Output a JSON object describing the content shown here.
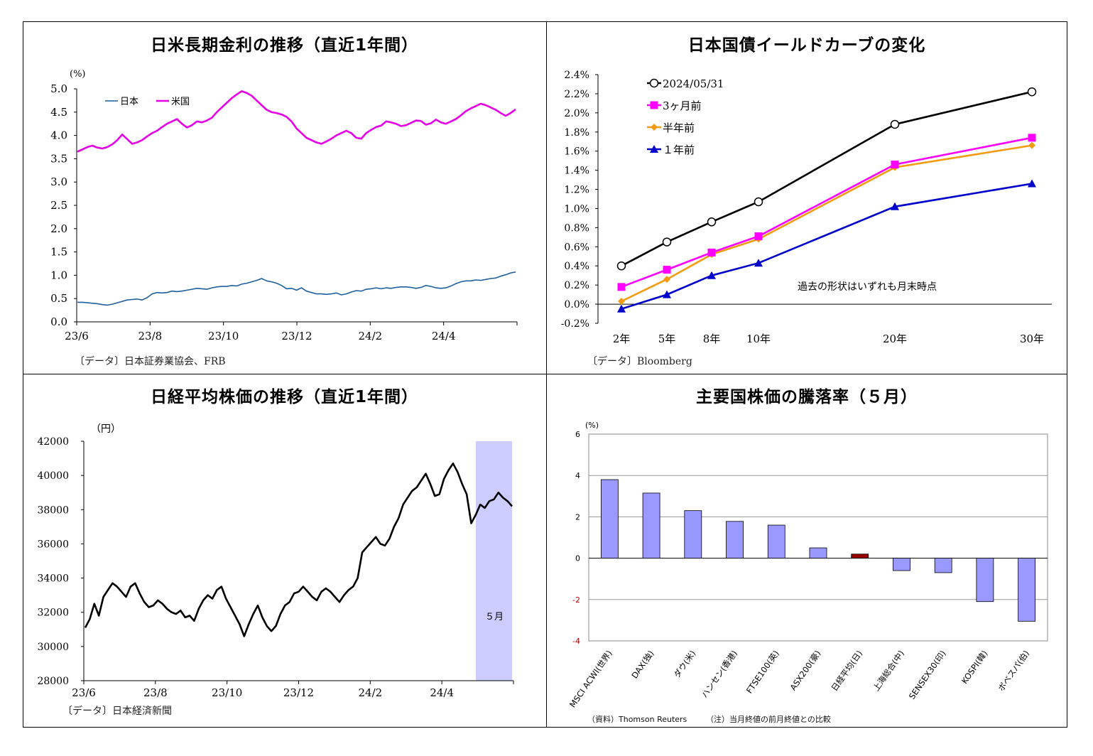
{
  "chart_data": [
    {
      "type": "line",
      "title": "日米長期金利の推移（直近1年間）",
      "ylabel": "(%)",
      "ylim": [
        0,
        5
      ],
      "yticks": [
        "5.0",
        "4.5",
        "4.0",
        "3.5",
        "3.0",
        "2.5",
        "2.0",
        "1.5",
        "1.0",
        "0.5",
        "0.0"
      ],
      "x_tick_labels": [
        "23/6",
        "23/8",
        "23/10",
        "23/12",
        "24/2",
        "24/4"
      ],
      "legend": "top-left",
      "series": [
        {
          "name": "日本",
          "color": "#1f5f9e",
          "values": [
            0.42,
            0.42,
            0.41,
            0.4,
            0.39,
            0.37,
            0.36,
            0.38,
            0.41,
            0.44,
            0.47,
            0.48,
            0.49,
            0.47,
            0.52,
            0.6,
            0.63,
            0.62,
            0.63,
            0.66,
            0.65,
            0.66,
            0.68,
            0.7,
            0.72,
            0.71,
            0.7,
            0.73,
            0.75,
            0.76,
            0.76,
            0.78,
            0.77,
            0.81,
            0.83,
            0.86,
            0.89,
            0.93,
            0.88,
            0.86,
            0.83,
            0.78,
            0.71,
            0.72,
            0.68,
            0.73,
            0.66,
            0.63,
            0.6,
            0.6,
            0.59,
            0.6,
            0.62,
            0.58,
            0.6,
            0.64,
            0.67,
            0.66,
            0.7,
            0.71,
            0.73,
            0.71,
            0.73,
            0.72,
            0.74,
            0.75,
            0.75,
            0.74,
            0.72,
            0.74,
            0.78,
            0.76,
            0.73,
            0.72,
            0.73,
            0.77,
            0.82,
            0.86,
            0.88,
            0.88,
            0.9,
            0.89,
            0.91,
            0.93,
            0.94,
            0.98,
            1.01,
            1.05,
            1.07
          ]
        },
        {
          "name": "米国",
          "color": "#e600e6",
          "values": [
            3.65,
            3.7,
            3.75,
            3.78,
            3.74,
            3.72,
            3.75,
            3.81,
            3.9,
            4.02,
            3.92,
            3.82,
            3.85,
            3.9,
            3.98,
            4.05,
            4.1,
            4.18,
            4.25,
            4.3,
            4.35,
            4.25,
            4.17,
            4.22,
            4.3,
            4.28,
            4.32,
            4.38,
            4.5,
            4.6,
            4.7,
            4.8,
            4.88,
            4.95,
            4.91,
            4.85,
            4.75,
            4.65,
            4.55,
            4.5,
            4.48,
            4.45,
            4.4,
            4.3,
            4.15,
            4.05,
            3.95,
            3.9,
            3.85,
            3.82,
            3.87,
            3.93,
            4.0,
            4.05,
            4.1,
            4.05,
            3.95,
            3.93,
            4.05,
            4.12,
            4.18,
            4.21,
            4.3,
            4.28,
            4.25,
            4.2,
            4.22,
            4.27,
            4.32,
            4.31,
            4.23,
            4.26,
            4.34,
            4.28,
            4.25,
            4.3,
            4.35,
            4.43,
            4.52,
            4.58,
            4.63,
            4.68,
            4.65,
            4.6,
            4.55,
            4.48,
            4.42,
            4.48,
            4.56
          ]
        }
      ]
    },
    {
      "type": "line",
      "title": "日本国債イールドカーブの変化",
      "ylim": [
        -0.2,
        2.4
      ],
      "yticks": [
        "2.4%",
        "2.2%",
        "2.0%",
        "1.8%",
        "1.6%",
        "1.4%",
        "1.2%",
        "1.0%",
        "0.8%",
        "0.6%",
        "0.4%",
        "0.2%",
        "0.0%",
        "-0.2%"
      ],
      "categories": [
        "2年",
        "5年",
        "8年",
        "10年",
        "20年",
        "30年"
      ],
      "x": [
        2,
        5,
        8,
        10,
        20,
        30
      ],
      "annotation": "過去の形状はいずれも月末時点",
      "legend": "top-left",
      "series": [
        {
          "name": "2024/05/31",
          "color": "#000000",
          "marker": "circle-open",
          "values": [
            0.4,
            0.65,
            0.86,
            1.07,
            1.88,
            2.22
          ]
        },
        {
          "name": "3ヶ月前",
          "color": "#ff00ff",
          "marker": "square",
          "values": [
            0.18,
            0.36,
            0.54,
            0.71,
            1.46,
            1.74
          ]
        },
        {
          "name": "半年前",
          "color": "#f39c12",
          "marker": "diamond",
          "values": [
            0.03,
            0.26,
            0.52,
            0.68,
            1.43,
            1.66
          ]
        },
        {
          "name": "１年前",
          "color": "#0000cc",
          "marker": "triangle",
          "values": [
            -0.05,
            0.1,
            0.3,
            0.43,
            1.02,
            1.26
          ]
        }
      ]
    },
    {
      "type": "line",
      "title": "日経平均株価の推移（直近1年間）",
      "ylabel": "（円）",
      "ylim": [
        28000,
        42000
      ],
      "yticks": [
        "42000",
        "40000",
        "38000",
        "36000",
        "34000",
        "32000",
        "30000",
        "28000"
      ],
      "x_tick_labels": [
        "23/6",
        "23/8",
        "23/10",
        "23/12",
        "24/2",
        "24/4"
      ],
      "highlight_label": "５月",
      "series": [
        {
          "name": "",
          "color": "#000000",
          "values": [
            31100,
            31600,
            32500,
            31800,
            32900,
            33300,
            33700,
            33500,
            33200,
            32900,
            33500,
            33700,
            33100,
            32600,
            32300,
            32400,
            32700,
            32500,
            32200,
            32000,
            31900,
            32100,
            31700,
            31800,
            31500,
            32200,
            32700,
            33000,
            32800,
            33300,
            33500,
            32800,
            32300,
            31800,
            31300,
            30600,
            31300,
            31900,
            32400,
            31700,
            31200,
            30900,
            31200,
            31900,
            32400,
            32600,
            33100,
            33200,
            33500,
            33200,
            32900,
            32700,
            33200,
            33400,
            33200,
            32900,
            32600,
            33000,
            33300,
            33500,
            34000,
            35500,
            35800,
            36100,
            36400,
            36000,
            35900,
            36300,
            37000,
            37500,
            38300,
            38700,
            39100,
            39300,
            39700,
            40100,
            39500,
            38800,
            38900,
            39800,
            40300,
            40700,
            40200,
            39500,
            38900,
            37200,
            37700,
            38300,
            38100,
            38500,
            38600,
            39000,
            38700,
            38500,
            38200
          ]
        }
      ]
    },
    {
      "type": "bar",
      "title": "主要国株価の騰落率（５月）",
      "ylabel": "(%)",
      "ylim": [
        -4,
        6
      ],
      "yticks": [
        "6",
        "4",
        "2",
        "0",
        "-2",
        "-4"
      ],
      "categories": [
        "MSCI ACWI(世界)",
        "DAX(独)",
        "ダウ(米)",
        "ハンセン(香港)",
        "FTSE100(英)",
        "ASX200(豪)",
        "日経平均(日)",
        "上海総合(中)",
        "SENSEX30(印)",
        "KOSPI(韓)",
        "ボベスパ(伯)"
      ],
      "values": [
        3.8,
        3.15,
        2.3,
        1.78,
        1.6,
        0.5,
        0.2,
        -0.6,
        -0.7,
        -2.1,
        -3.05
      ],
      "colors": {
        "bar": "#9999ff",
        "highlight": "#990000"
      },
      "highlight_index": 6
    }
  ],
  "sources": {
    "rates": "〔データ〕日本証券業協会、FRB",
    "yield": "〔データ〕Bloomberg",
    "nikkei": "〔データ〕日本経済新聞",
    "world_resource": "（資料）Thomson Reuters",
    "world_note": "（注）当月終値の前月終値との比較"
  }
}
